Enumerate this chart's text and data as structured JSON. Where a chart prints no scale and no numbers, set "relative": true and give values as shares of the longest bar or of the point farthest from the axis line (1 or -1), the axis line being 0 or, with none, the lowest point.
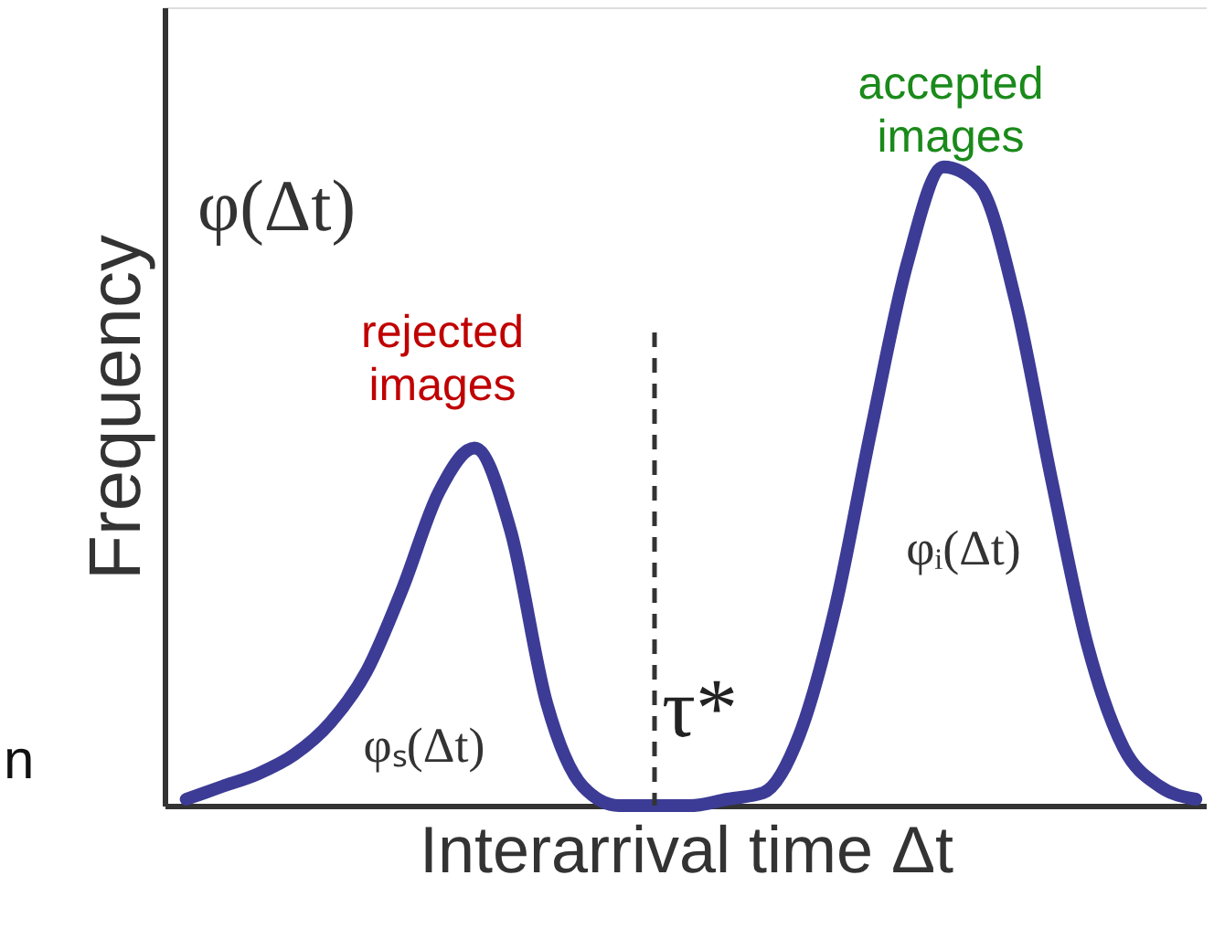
{
  "chart_data": {
    "type": "line",
    "relative": true,
    "xlabel": "Interarrival time  Δt",
    "ylabel": "Frequency",
    "categories": [
      null,
      null,
      null,
      null,
      null,
      null,
      null,
      null,
      null,
      null,
      null,
      null,
      null,
      null,
      null,
      null,
      null,
      null,
      null,
      null,
      null,
      null,
      null,
      null,
      null,
      null,
      null,
      null,
      null
    ],
    "series": [
      {
        "color": "#3c3c96",
        "values": [
          0.01,
          0.03,
          0.05,
          0.08,
          0.13,
          0.21,
          0.34,
          0.49,
          0.56,
          0.43,
          0.16,
          0.03,
          0,
          0,
          0,
          0.01,
          0.02,
          0.11,
          0.31,
          0.59,
          0.85,
          1,
          0.97,
          0.79,
          0.51,
          0.25,
          0.09,
          0.03,
          0.01
        ]
      }
    ],
    "annotations": [
      "φ(Δt)",
      "rejected\nimages",
      "accepted\nimages",
      "φₛ(Δt)",
      "φᵢ(Δt)",
      "n",
      "τ*"
    ],
    "grid": false,
    "line_style": "solid"
  }
}
